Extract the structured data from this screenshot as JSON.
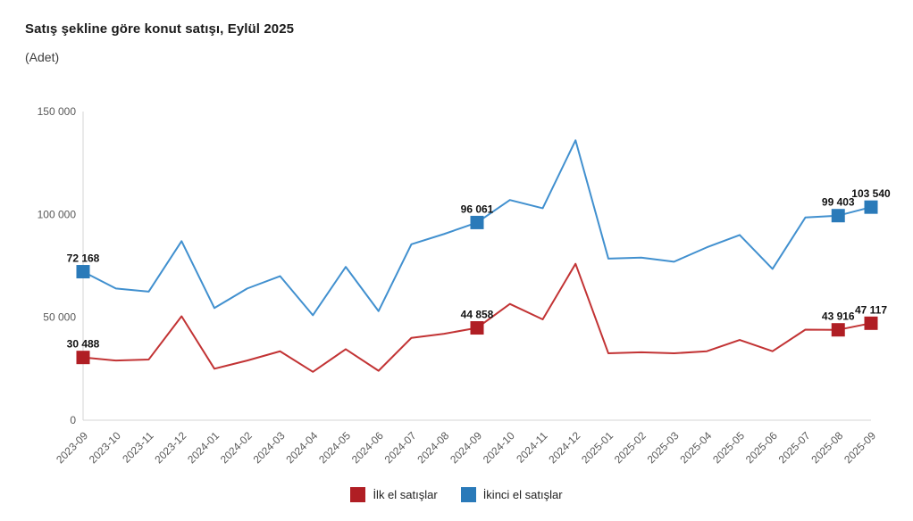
{
  "header": {
    "title": "Satış şekline göre konut satışı, Eylül 2025",
    "subtitle": "(Adet)"
  },
  "chart_data": {
    "type": "line",
    "title": "Satış şekline göre konut satışı, Eylül 2025",
    "subtitle": "(Adet)",
    "unit": "Adet",
    "grid": false,
    "legend_position": "bottom",
    "ylim": [
      0,
      150000
    ],
    "yticks": [
      {
        "value": 0,
        "label": "0"
      },
      {
        "value": 50000,
        "label": "50 000"
      },
      {
        "value": 100000,
        "label": "100 000"
      },
      {
        "value": 150000,
        "label": "150 000"
      }
    ],
    "categories": [
      "2023-09",
      "2023-10",
      "2023-11",
      "2023-12",
      "2024-01",
      "2024-02",
      "2024-03",
      "2024-04",
      "2024-05",
      "2024-06",
      "2024-07",
      "2024-08",
      "2024-09",
      "2024-10",
      "2024-11",
      "2024-12",
      "2025-01",
      "2025-02",
      "2025-03",
      "2025-04",
      "2025-05",
      "2025-06",
      "2025-07",
      "2025-08",
      "2025-09"
    ],
    "series": [
      {
        "name": "İlk el satışlar",
        "color": "#b01e24",
        "line_color": "#c23334",
        "values": [
          30488,
          29000,
          29500,
          50500,
          25000,
          29000,
          33500,
          23500,
          34500,
          24000,
          40000,
          42000,
          44858,
          56500,
          49000,
          76000,
          32500,
          33000,
          32500,
          33500,
          39000,
          33500,
          44000,
          43916,
          47117
        ],
        "data_labels": {
          "0": "30 488",
          "12": "44 858",
          "23": "43 916",
          "24": "47 117"
        }
      },
      {
        "name": "İkinci el satışlar",
        "color": "#2a7ab9",
        "line_color": "#4190cf",
        "values": [
          72168,
          64000,
          62500,
          87000,
          54500,
          64000,
          70000,
          51000,
          74500,
          53000,
          85500,
          90500,
          96061,
          107000,
          103000,
          136000,
          78500,
          79000,
          77000,
          84000,
          90000,
          73500,
          98500,
          99403,
          103540
        ],
        "data_labels": {
          "0": "72 168",
          "12": "96 061",
          "23": "99 403",
          "24": "103 540"
        }
      }
    ],
    "axis_color": "#d6d6d6",
    "tick_label_color": "#595959",
    "data_label_color": "#111111"
  }
}
